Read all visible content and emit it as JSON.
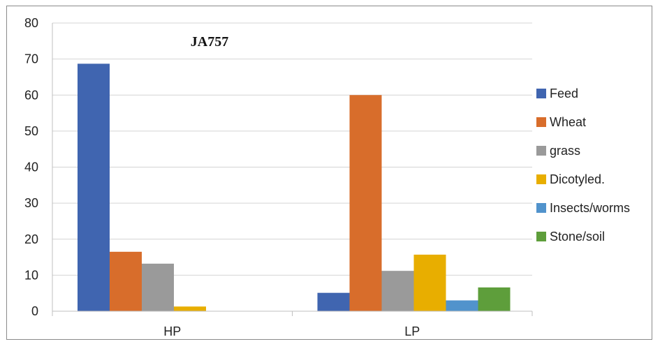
{
  "chart_data": {
    "type": "bar",
    "title": "JA757",
    "categories": [
      "HP",
      "LP"
    ],
    "series": [
      {
        "name": "Feed",
        "values": [
          68.7,
          5.1
        ],
        "color": "#4065B0"
      },
      {
        "name": "Wheat",
        "values": [
          16.5,
          60.0
        ],
        "color": "#D86D2B"
      },
      {
        "name": "grass",
        "values": [
          13.2,
          11.2
        ],
        "color": "#9A9A9A"
      },
      {
        "name": "Dicotyled.",
        "values": [
          1.3,
          15.7
        ],
        "color": "#E8AE00"
      },
      {
        "name": "Insects/worms",
        "values": [
          0,
          3.0
        ],
        "color": "#5193CC"
      },
      {
        "name": "Stone/soil",
        "values": [
          0,
          6.6
        ],
        "color": "#5E9E3B"
      }
    ],
    "ylim": [
      0,
      80
    ],
    "yticks": [
      "0",
      "10",
      "20",
      "30",
      "40",
      "50",
      "60",
      "70",
      "80"
    ],
    "grid": true,
    "legend_position": "right"
  }
}
